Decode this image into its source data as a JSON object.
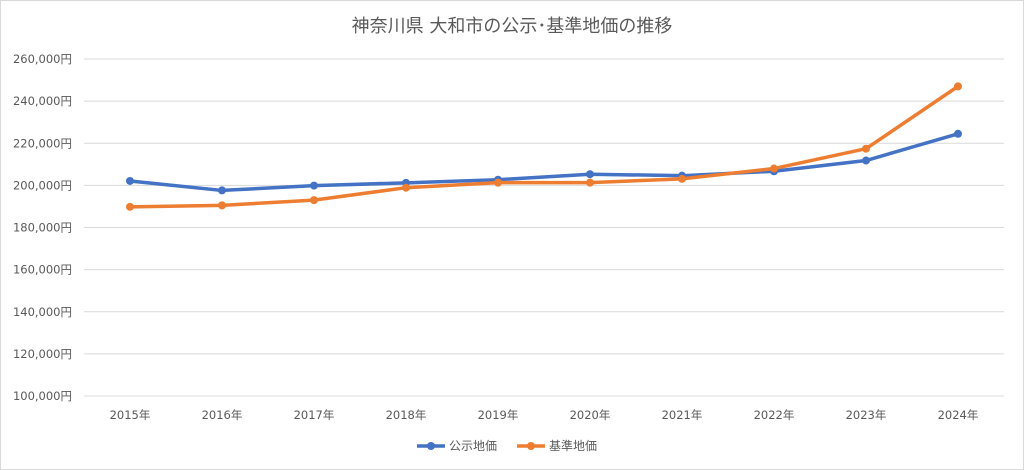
{
  "chart_data": {
    "type": "line",
    "title": "神奈川県 大和市の公示･基準地価の推移",
    "xlabel": "",
    "ylabel": "",
    "categories": [
      "2015年",
      "2016年",
      "2017年",
      "2018年",
      "2019年",
      "2020年",
      "2021年",
      "2022年",
      "2023年",
      "2024年"
    ],
    "y_ticks": [
      "100,000円",
      "120,000円",
      "140,000円",
      "160,000円",
      "180,000円",
      "200,000円",
      "220,000円",
      "240,000円",
      "260,000円"
    ],
    "ylim": [
      100000,
      260000
    ],
    "grid": true,
    "legend_position": "bottom",
    "series": [
      {
        "name": "公示地価",
        "color": "#4472c4",
        "values": [
          202100,
          197600,
          199900,
          201200,
          202700,
          205300,
          204600,
          206700,
          211800,
          224500
        ]
      },
      {
        "name": "基準地価",
        "color": "#ed7d31",
        "values": [
          189800,
          190500,
          193000,
          198900,
          201300,
          201300,
          203100,
          208000,
          217400,
          247000
        ]
      }
    ]
  }
}
